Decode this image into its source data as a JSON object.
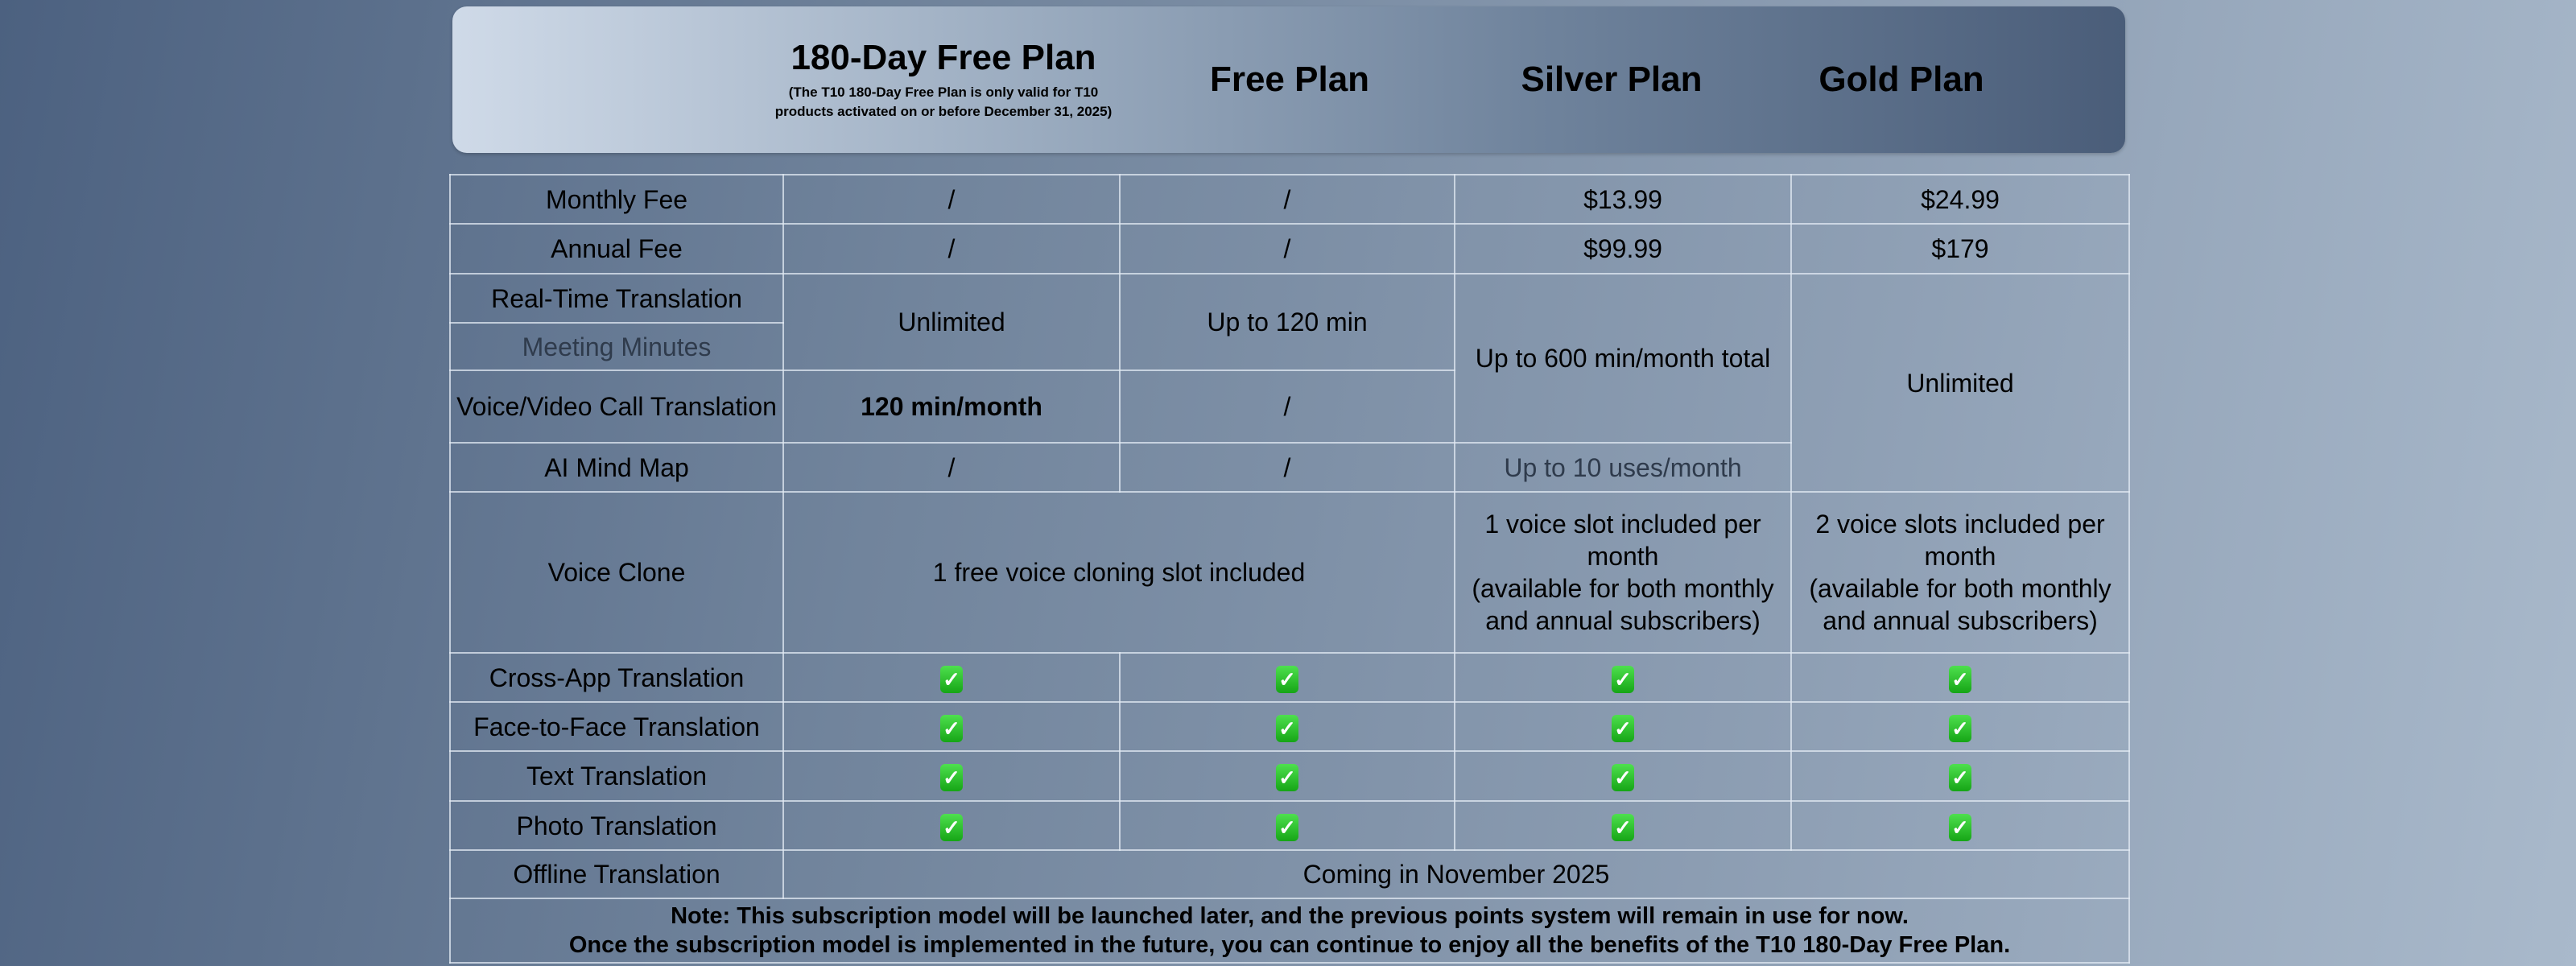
{
  "header": {
    "plans": [
      {
        "title": "180-Day Free Plan",
        "subtitle": "(The T10 180-Day Free Plan is only valid for T10 products activated on or before December 31, 2025)"
      },
      {
        "title": "Free Plan"
      },
      {
        "title": "Silver Plan"
      },
      {
        "title": "Gold Plan"
      }
    ]
  },
  "table": {
    "monthly_fee": {
      "label": "Monthly Fee",
      "values": [
        "/",
        "/",
        "$13.99",
        "$24.99"
      ]
    },
    "annual_fee": {
      "label": "Annual Fee",
      "values": [
        "/",
        "/",
        "$99.99",
        "$179"
      ]
    },
    "real_time": {
      "label": "Real-Time Translation"
    },
    "meeting_minutes": {
      "label": "Meeting Minutes"
    },
    "rt_mm_values": {
      "free180": "Unlimited",
      "free": "Up to 120 min"
    },
    "silver_combined": "Up to 600 min/month total",
    "gold_combined": "Unlimited",
    "voice_video": {
      "label": "Voice/Video Call Translation",
      "values": [
        "120 min/month",
        "/"
      ]
    },
    "mind_map": {
      "label": "AI Mind Map",
      "values": [
        "/",
        "/",
        "Up to 10 uses/month"
      ]
    },
    "voice_clone": {
      "label": "Voice Clone",
      "free_both": "1 free voice cloning slot included",
      "silver_line1": "1 voice slot included per month",
      "silver_line2": "(available for both monthly and annual subscribers)",
      "gold_line1": "2 voice slots included per month",
      "gold_line2": "(available for both monthly and annual subscribers)"
    },
    "check_rows": [
      {
        "label": "Cross-App Translation"
      },
      {
        "label": "Face-to-Face Translation"
      },
      {
        "label": "Text Translation"
      },
      {
        "label": "Photo Translation"
      }
    ],
    "check_icon": "white-heavy-check-mark-icon",
    "check_glyph": "✓",
    "offline": {
      "label": "Offline Translation",
      "value": "Coming in November 2025"
    },
    "note_line1": "Note: This subscription model will be launched later, and the previous points system will remain in use for now.",
    "note_line2": "Once the subscription model is implemented in the future, you can continue to enjoy all the benefits of the T10 180-Day Free Plan."
  }
}
